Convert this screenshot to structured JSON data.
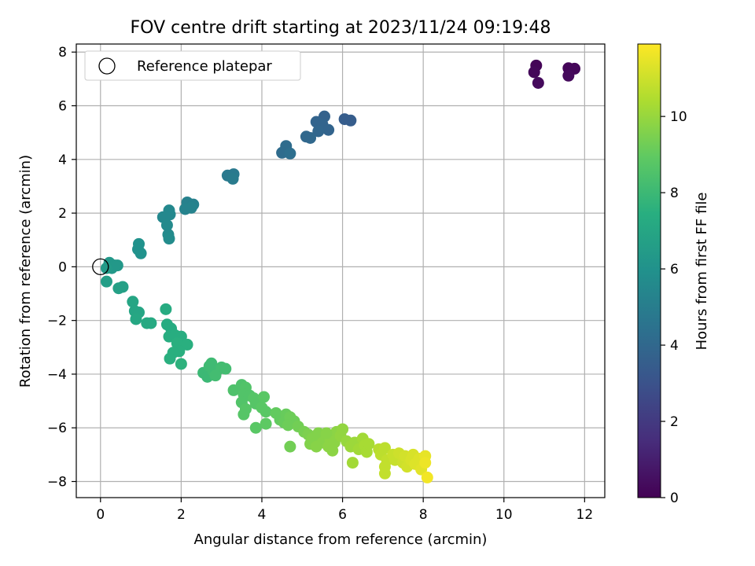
{
  "chart_data": {
    "type": "scatter",
    "title": "FOV centre drift starting at 2023/11/24 09:19:48",
    "xlabel": "Angular distance from reference (arcmin)",
    "ylabel": "Rotation from reference (arcmin)",
    "xlim": [
      -0.6,
      12.5
    ],
    "ylim": [
      -8.6,
      8.3
    ],
    "xticks": [
      0,
      2,
      4,
      6,
      8,
      10,
      12
    ],
    "yticks": [
      -8,
      -6,
      -4,
      -2,
      0,
      2,
      4,
      6,
      8
    ],
    "grid": true,
    "legend": {
      "placement": "upper-left",
      "label": "Reference platepar"
    },
    "reference_point": {
      "x": 0,
      "y": 0
    },
    "colorbar": {
      "label": "Hours from first FF file",
      "min": 0,
      "max": 11.9,
      "ticks": [
        0,
        2,
        4,
        6,
        8,
        10
      ],
      "colormap": "viridis"
    },
    "points": [
      {
        "x": 10.8,
        "y": 7.5,
        "t": 0.1
      },
      {
        "x": 10.75,
        "y": 7.25,
        "t": 0.2
      },
      {
        "x": 10.85,
        "y": 6.85,
        "t": 0.3
      },
      {
        "x": 11.6,
        "y": 7.4,
        "t": 0.15
      },
      {
        "x": 11.75,
        "y": 7.38,
        "t": 0.2
      },
      {
        "x": 11.6,
        "y": 7.12,
        "t": 0.3
      },
      {
        "x": 6.05,
        "y": 5.5,
        "t": 3.5
      },
      {
        "x": 6.2,
        "y": 5.45,
        "t": 3.5
      },
      {
        "x": 5.55,
        "y": 5.6,
        "t": 3.7
      },
      {
        "x": 5.35,
        "y": 5.4,
        "t": 3.8
      },
      {
        "x": 5.5,
        "y": 5.3,
        "t": 3.8
      },
      {
        "x": 5.65,
        "y": 5.1,
        "t": 3.8
      },
      {
        "x": 5.4,
        "y": 5.05,
        "t": 3.9
      },
      {
        "x": 5.1,
        "y": 4.85,
        "t": 4.0
      },
      {
        "x": 5.2,
        "y": 4.8,
        "t": 4.0
      },
      {
        "x": 4.6,
        "y": 4.5,
        "t": 4.2
      },
      {
        "x": 4.5,
        "y": 4.25,
        "t": 4.2
      },
      {
        "x": 4.7,
        "y": 4.22,
        "t": 4.3
      },
      {
        "x": 3.15,
        "y": 3.4,
        "t": 4.8
      },
      {
        "x": 3.3,
        "y": 3.45,
        "t": 4.8
      },
      {
        "x": 3.28,
        "y": 3.28,
        "t": 4.9
      },
      {
        "x": 2.15,
        "y": 2.4,
        "t": 5.2
      },
      {
        "x": 2.3,
        "y": 2.32,
        "t": 5.2
      },
      {
        "x": 2.25,
        "y": 2.2,
        "t": 5.3
      },
      {
        "x": 2.1,
        "y": 2.15,
        "t": 5.3
      },
      {
        "x": 1.55,
        "y": 1.85,
        "t": 5.5
      },
      {
        "x": 1.7,
        "y": 2.1,
        "t": 5.5
      },
      {
        "x": 1.72,
        "y": 1.95,
        "t": 5.5
      },
      {
        "x": 1.65,
        "y": 1.55,
        "t": 5.6
      },
      {
        "x": 1.68,
        "y": 1.2,
        "t": 5.6
      },
      {
        "x": 1.7,
        "y": 1.05,
        "t": 5.7
      },
      {
        "x": 0.95,
        "y": 0.85,
        "t": 6.0
      },
      {
        "x": 0.93,
        "y": 0.65,
        "t": 6.0
      },
      {
        "x": 1.0,
        "y": 0.5,
        "t": 6.0
      },
      {
        "x": 0.22,
        "y": 0.15,
        "t": 6.3
      },
      {
        "x": 0.35,
        "y": 0.05,
        "t": 6.3
      },
      {
        "x": 0.28,
        "y": -0.05,
        "t": 6.3
      },
      {
        "x": 0.42,
        "y": 0.05,
        "t": 6.3
      },
      {
        "x": 0.15,
        "y": -0.05,
        "t": 6.4
      },
      {
        "x": 0.15,
        "y": -0.55,
        "t": 6.6
      },
      {
        "x": 0.45,
        "y": -0.8,
        "t": 6.7
      },
      {
        "x": 0.55,
        "y": -0.75,
        "t": 6.7
      },
      {
        "x": 0.8,
        "y": -1.3,
        "t": 7.0
      },
      {
        "x": 0.85,
        "y": -1.65,
        "t": 7.0
      },
      {
        "x": 0.95,
        "y": -1.7,
        "t": 7.0
      },
      {
        "x": 0.88,
        "y": -1.95,
        "t": 7.1
      },
      {
        "x": 1.15,
        "y": -2.1,
        "t": 7.2
      },
      {
        "x": 1.25,
        "y": -2.1,
        "t": 7.2
      },
      {
        "x": 1.62,
        "y": -1.58,
        "t": 7.3
      },
      {
        "x": 1.65,
        "y": -2.15,
        "t": 7.3
      },
      {
        "x": 1.75,
        "y": -2.3,
        "t": 7.3
      },
      {
        "x": 1.7,
        "y": -2.6,
        "t": 7.4
      },
      {
        "x": 1.85,
        "y": -2.55,
        "t": 7.4
      },
      {
        "x": 2.0,
        "y": -2.6,
        "t": 7.4
      },
      {
        "x": 1.9,
        "y": -2.85,
        "t": 7.5
      },
      {
        "x": 2.15,
        "y": -2.9,
        "t": 7.5
      },
      {
        "x": 1.95,
        "y": -3.15,
        "t": 7.5
      },
      {
        "x": 1.8,
        "y": -3.2,
        "t": 7.5
      },
      {
        "x": 1.72,
        "y": -3.42,
        "t": 7.5
      },
      {
        "x": 2.0,
        "y": -3.62,
        "t": 7.6
      },
      {
        "x": 2.55,
        "y": -3.95,
        "t": 8.0
      },
      {
        "x": 2.65,
        "y": -4.1,
        "t": 8.0
      },
      {
        "x": 2.7,
        "y": -3.7,
        "t": 8.1
      },
      {
        "x": 2.8,
        "y": -3.9,
        "t": 8.1
      },
      {
        "x": 2.9,
        "y": -3.85,
        "t": 8.1
      },
      {
        "x": 2.75,
        "y": -3.6,
        "t": 8.1
      },
      {
        "x": 3.0,
        "y": -3.75,
        "t": 8.2
      },
      {
        "x": 3.1,
        "y": -3.8,
        "t": 8.2
      },
      {
        "x": 2.85,
        "y": -4.05,
        "t": 8.2
      },
      {
        "x": 3.3,
        "y": -4.6,
        "t": 8.5
      },
      {
        "x": 3.5,
        "y": -4.4,
        "t": 8.5
      },
      {
        "x": 3.6,
        "y": -4.5,
        "t": 8.6
      },
      {
        "x": 3.55,
        "y": -4.75,
        "t": 8.6
      },
      {
        "x": 3.7,
        "y": -4.8,
        "t": 8.6
      },
      {
        "x": 3.5,
        "y": -5.05,
        "t": 8.6
      },
      {
        "x": 3.6,
        "y": -5.3,
        "t": 8.7
      },
      {
        "x": 3.55,
        "y": -5.5,
        "t": 8.7
      },
      {
        "x": 3.8,
        "y": -4.9,
        "t": 8.7
      },
      {
        "x": 3.85,
        "y": -5.1,
        "t": 8.7
      },
      {
        "x": 4.05,
        "y": -4.85,
        "t": 8.8
      },
      {
        "x": 4.0,
        "y": -5.25,
        "t": 8.8
      },
      {
        "x": 4.1,
        "y": -5.4,
        "t": 8.8
      },
      {
        "x": 3.85,
        "y": -6.0,
        "t": 8.8
      },
      {
        "x": 4.1,
        "y": -5.85,
        "t": 8.9
      },
      {
        "x": 4.35,
        "y": -5.45,
        "t": 9.0
      },
      {
        "x": 4.45,
        "y": -5.7,
        "t": 9.0
      },
      {
        "x": 4.6,
        "y": -5.5,
        "t": 9.1
      },
      {
        "x": 4.55,
        "y": -5.8,
        "t": 9.1
      },
      {
        "x": 4.7,
        "y": -5.6,
        "t": 9.2
      },
      {
        "x": 4.8,
        "y": -5.75,
        "t": 9.2
      },
      {
        "x": 4.65,
        "y": -5.9,
        "t": 9.2
      },
      {
        "x": 4.7,
        "y": -6.7,
        "t": 9.3
      },
      {
        "x": 4.9,
        "y": -5.95,
        "t": 9.3
      },
      {
        "x": 5.05,
        "y": -6.15,
        "t": 9.4
      },
      {
        "x": 5.15,
        "y": -6.25,
        "t": 9.5
      },
      {
        "x": 5.25,
        "y": -6.4,
        "t": 9.6
      },
      {
        "x": 5.4,
        "y": -6.2,
        "t": 9.6
      },
      {
        "x": 5.5,
        "y": -6.55,
        "t": 9.7
      },
      {
        "x": 5.6,
        "y": -6.3,
        "t": 9.7
      },
      {
        "x": 5.7,
        "y": -6.45,
        "t": 9.8
      },
      {
        "x": 5.65,
        "y": -6.7,
        "t": 9.8
      },
      {
        "x": 5.8,
        "y": -6.55,
        "t": 9.8
      },
      {
        "x": 5.85,
        "y": -6.15,
        "t": 9.8
      },
      {
        "x": 5.95,
        "y": -6.3,
        "t": 9.9
      },
      {
        "x": 5.2,
        "y": -6.6,
        "t": 9.6
      },
      {
        "x": 5.35,
        "y": -6.7,
        "t": 9.7
      },
      {
        "x": 5.6,
        "y": -6.2,
        "t": 9.7
      },
      {
        "x": 5.75,
        "y": -6.85,
        "t": 9.8
      },
      {
        "x": 6.0,
        "y": -6.05,
        "t": 9.9
      },
      {
        "x": 6.1,
        "y": -6.5,
        "t": 10.0
      },
      {
        "x": 6.2,
        "y": -6.7,
        "t": 10.1
      },
      {
        "x": 6.3,
        "y": -6.55,
        "t": 10.1
      },
      {
        "x": 6.4,
        "y": -6.8,
        "t": 10.2
      },
      {
        "x": 6.5,
        "y": -6.4,
        "t": 10.2
      },
      {
        "x": 6.55,
        "y": -6.65,
        "t": 10.3
      },
      {
        "x": 6.6,
        "y": -6.9,
        "t": 10.3
      },
      {
        "x": 6.25,
        "y": -7.3,
        "t": 10.2
      },
      {
        "x": 6.65,
        "y": -6.6,
        "t": 10.3
      },
      {
        "x": 6.9,
        "y": -6.8,
        "t": 10.6
      },
      {
        "x": 7.05,
        "y": -6.75,
        "t": 10.7
      },
      {
        "x": 6.95,
        "y": -7.0,
        "t": 10.7
      },
      {
        "x": 7.1,
        "y": -7.2,
        "t": 10.8
      },
      {
        "x": 7.05,
        "y": -7.45,
        "t": 10.8
      },
      {
        "x": 7.05,
        "y": -7.7,
        "t": 10.8
      },
      {
        "x": 7.25,
        "y": -7.0,
        "t": 10.9
      },
      {
        "x": 7.3,
        "y": -7.2,
        "t": 10.9
      },
      {
        "x": 7.4,
        "y": -6.95,
        "t": 11.0
      },
      {
        "x": 7.5,
        "y": -7.3,
        "t": 11.0
      },
      {
        "x": 7.55,
        "y": -7.05,
        "t": 11.1
      },
      {
        "x": 7.6,
        "y": -7.45,
        "t": 11.1
      },
      {
        "x": 7.7,
        "y": -7.2,
        "t": 11.2
      },
      {
        "x": 7.75,
        "y": -7.0,
        "t": 11.2
      },
      {
        "x": 7.8,
        "y": -7.35,
        "t": 11.3
      },
      {
        "x": 7.9,
        "y": -7.15,
        "t": 11.3
      },
      {
        "x": 7.95,
        "y": -7.55,
        "t": 11.4
      },
      {
        "x": 8.05,
        "y": -7.05,
        "t": 11.5
      },
      {
        "x": 8.05,
        "y": -7.3,
        "t": 11.6
      },
      {
        "x": 8.1,
        "y": -7.85,
        "t": 11.7
      }
    ]
  }
}
